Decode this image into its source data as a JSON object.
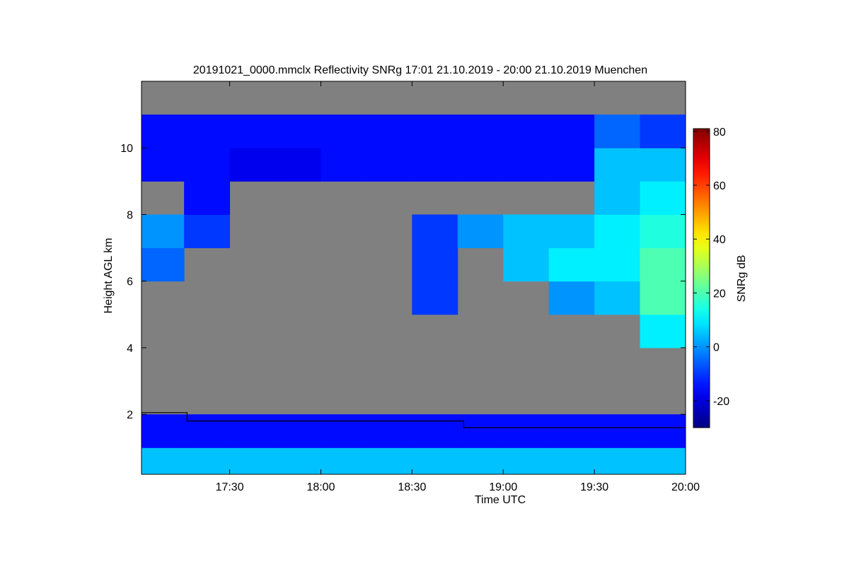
{
  "chart_data": {
    "type": "heatmap",
    "title": "20191021_0000.mmclx Reflectivity SNRg   17:01 21.10.2019 - 20:00 21.10.2019 Muenchen",
    "x_label": "Time UTC",
    "y_label": "Height AGL km",
    "colorbar_label": "SNRg dB",
    "xlim": [
      "17:01",
      "20:00"
    ],
    "xticks": [
      "17:30",
      "18:00",
      "18:30",
      "19:00",
      "19:30",
      "20:00"
    ],
    "ylim": [
      0.2,
      12
    ],
    "yticks": [
      2,
      4,
      6,
      8,
      10
    ],
    "clim": [
      -30,
      81
    ],
    "cticks": [
      -20,
      0,
      20,
      40,
      60,
      80
    ],
    "colormap": "jet",
    "background": "#808080",
    "x_bins": [
      "17:00",
      "17:15",
      "17:30",
      "17:45",
      "18:00",
      "18:15",
      "18:30",
      "18:45",
      "19:00",
      "19:15",
      "19:30",
      "19:45",
      "20:00"
    ],
    "y_bins": [
      0.2,
      1,
      2,
      3,
      4,
      5,
      6,
      7,
      8,
      9,
      10,
      11,
      12
    ],
    "z": [
      [
        5,
        5,
        5,
        5,
        5,
        5,
        5,
        5,
        5,
        5,
        5,
        5
      ],
      [
        -15,
        -15,
        -15,
        -15,
        -15,
        -15,
        -15,
        -15,
        -15,
        -15,
        -15,
        -15
      ],
      [
        null,
        null,
        null,
        null,
        null,
        null,
        null,
        null,
        null,
        null,
        null,
        null
      ],
      [
        null,
        null,
        null,
        null,
        null,
        null,
        null,
        null,
        null,
        null,
        null,
        null
      ],
      [
        null,
        null,
        null,
        null,
        null,
        null,
        null,
        null,
        null,
        null,
        null,
        10
      ],
      [
        null,
        null,
        null,
        null,
        null,
        null,
        -10,
        null,
        null,
        0,
        5,
        20
      ],
      [
        -5,
        null,
        null,
        null,
        null,
        null,
        -10,
        null,
        5,
        10,
        10,
        20
      ],
      [
        0,
        -10,
        null,
        null,
        null,
        null,
        -10,
        0,
        5,
        5,
        10,
        15
      ],
      [
        null,
        -15,
        null,
        null,
        null,
        null,
        null,
        null,
        null,
        null,
        5,
        10
      ],
      [
        -15,
        -15,
        -18,
        -18,
        -15,
        -15,
        -15,
        -15,
        -15,
        -15,
        5,
        5
      ],
      [
        -15,
        -15,
        -15,
        -15,
        -15,
        -15,
        -15,
        -15,
        -15,
        -15,
        -5,
        -10
      ],
      [
        null,
        null,
        null,
        null,
        null,
        null,
        null,
        null,
        null,
        null,
        null,
        null
      ]
    ],
    "line": {
      "color": "#000000",
      "x": [
        "17:01",
        "17:16",
        "17:16",
        "18:47",
        "18:47",
        "20:00"
      ],
      "values": [
        2.05,
        2.05,
        1.8,
        1.8,
        1.6,
        1.6
      ]
    }
  }
}
